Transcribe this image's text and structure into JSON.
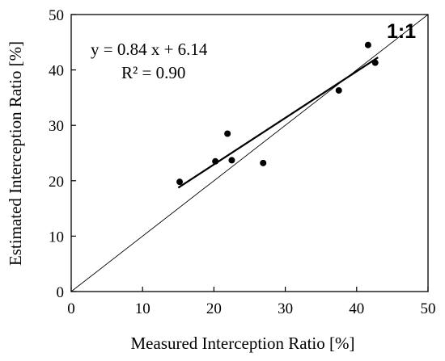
{
  "chart_data": {
    "type": "scatter",
    "title": "",
    "xlabel": "Measured Interception Ratio [%]",
    "ylabel": "Estimated Interception Ratio [%]",
    "xlim": [
      0,
      50
    ],
    "ylim": [
      0,
      50
    ],
    "xticks": [
      "0",
      "10",
      "20",
      "30",
      "40",
      "50"
    ],
    "yticks": [
      "0",
      "10",
      "20",
      "30",
      "40",
      "50"
    ],
    "grid": false,
    "points": [
      {
        "x": 15.2,
        "y": 19.8
      },
      {
        "x": 20.2,
        "y": 23.5
      },
      {
        "x": 21.9,
        "y": 28.5
      },
      {
        "x": 22.5,
        "y": 23.7
      },
      {
        "x": 26.9,
        "y": 23.2
      },
      {
        "x": 37.5,
        "y": 36.3
      },
      {
        "x": 41.6,
        "y": 44.5
      },
      {
        "x": 42.6,
        "y": 41.3
      }
    ],
    "regression": {
      "slope": 0.84,
      "intercept": 6.14,
      "x_range": [
        15,
        43
      ]
    },
    "reference_line_label": "1:1",
    "annotations": {
      "equation": "y = 0.84 x + 6.14",
      "r_squared": "R² = 0.90"
    }
  }
}
